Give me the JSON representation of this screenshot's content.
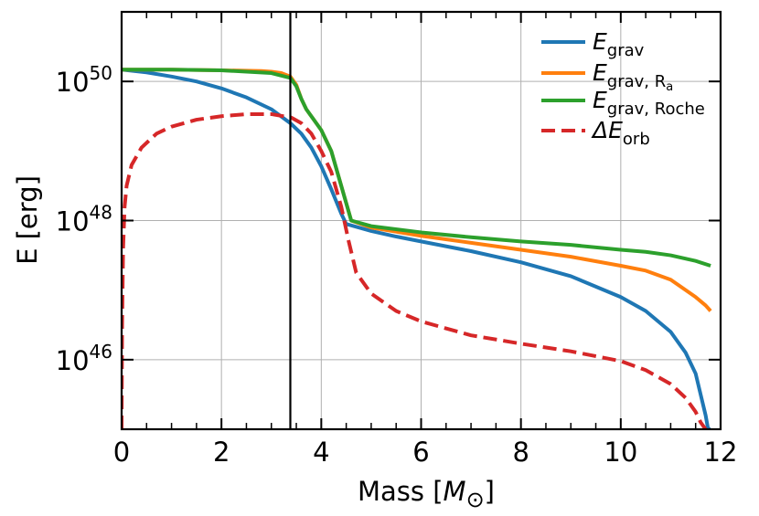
{
  "chart_data": {
    "type": "line",
    "title": "",
    "xlabel": "Mass [M⊙]",
    "ylabel": "E [erg]",
    "xlim": [
      0,
      12
    ],
    "ylim_log10": [
      45,
      51
    ],
    "y_scale": "log",
    "grid": true,
    "legend_position": "top-right",
    "x_ticks": [
      0,
      2,
      4,
      6,
      8,
      10,
      12
    ],
    "y_ticks": [
      {
        "value": 1e+46,
        "base": "10",
        "exp": "46"
      },
      {
        "value": 1e+48,
        "base": "10",
        "exp": "48"
      },
      {
        "value": 1e+50,
        "base": "10",
        "exp": "50"
      }
    ],
    "vertical_line_x": 3.38,
    "series": [
      {
        "name": "E_grav",
        "legend": {
          "main": "E",
          "sub": "grav"
        },
        "color": "#1f77b4",
        "dash": false,
        "x": [
          0,
          0.5,
          1.0,
          1.5,
          2.0,
          2.5,
          3.0,
          3.38,
          3.6,
          3.8,
          4.0,
          4.2,
          4.4,
          4.5,
          5.0,
          5.5,
          6.0,
          7.0,
          8.0,
          9.0,
          10.0,
          10.5,
          11.0,
          11.3,
          11.5,
          11.6,
          11.7,
          11.75,
          11.8
        ],
        "log10_y": [
          50.17,
          50.13,
          50.07,
          50.0,
          49.9,
          49.77,
          49.6,
          49.4,
          49.25,
          49.05,
          48.78,
          48.45,
          48.1,
          47.95,
          47.85,
          47.77,
          47.7,
          47.56,
          47.4,
          47.2,
          46.9,
          46.7,
          46.4,
          46.1,
          45.8,
          45.5,
          45.2,
          45.0,
          45.0
        ]
      },
      {
        "name": "E_grav,Ra",
        "legend": {
          "main": "E",
          "sub": "grav, R",
          "subsub": "a"
        },
        "color": "#ff7f0e",
        "dash": false,
        "x": [
          0,
          1.0,
          2.0,
          2.8,
          3.0,
          3.2,
          3.38,
          3.5,
          3.6,
          3.7,
          3.8,
          4.0,
          4.2,
          4.4,
          4.6,
          5.0,
          6.0,
          7.0,
          8.0,
          9.0,
          10.0,
          10.5,
          11.0,
          11.3,
          11.5,
          11.7,
          11.8
        ],
        "log10_y": [
          50.17,
          50.17,
          50.16,
          50.15,
          50.14,
          50.12,
          50.07,
          49.95,
          49.75,
          49.6,
          49.5,
          49.3,
          49.0,
          48.5,
          48.0,
          47.9,
          47.78,
          47.68,
          47.58,
          47.48,
          47.35,
          47.28,
          47.15,
          47.0,
          46.9,
          46.78,
          46.7
        ]
      },
      {
        "name": "E_grav,Roche",
        "legend": {
          "main": "E",
          "sub": "grav, Roche"
        },
        "color": "#2ca02c",
        "dash": false,
        "x": [
          0,
          1.0,
          2.0,
          3.0,
          3.38,
          3.5,
          3.6,
          3.7,
          3.8,
          4.0,
          4.2,
          4.4,
          4.6,
          5.0,
          6.0,
          7.0,
          8.0,
          9.0,
          10.0,
          10.5,
          11.0,
          11.5,
          11.8
        ],
        "log10_y": [
          50.17,
          50.17,
          50.16,
          50.12,
          50.05,
          49.93,
          49.75,
          49.6,
          49.5,
          49.3,
          49.0,
          48.5,
          48.0,
          47.92,
          47.83,
          47.76,
          47.7,
          47.65,
          47.58,
          47.55,
          47.5,
          47.42,
          47.35
        ]
      },
      {
        "name": "ΔE_orb",
        "legend": {
          "main": "ΔE",
          "sub": "orb"
        },
        "color": "#d62728",
        "dash": true,
        "x": [
          0,
          0.01,
          0.03,
          0.06,
          0.1,
          0.2,
          0.4,
          0.7,
          1.0,
          1.5,
          2.0,
          2.5,
          3.0,
          3.4,
          3.6,
          3.8,
          4.0,
          4.2,
          4.4,
          4.55,
          4.7,
          5.0,
          5.5,
          6.0,
          7.0,
          8.0,
          9.0,
          10.0,
          10.5,
          11.0,
          11.3,
          11.5,
          11.6,
          11.7
        ],
        "log10_y": [
          45.0,
          46.5,
          47.6,
          48.2,
          48.5,
          48.8,
          49.05,
          49.25,
          49.35,
          49.45,
          49.5,
          49.53,
          49.53,
          49.48,
          49.4,
          49.25,
          49.0,
          48.7,
          48.2,
          47.7,
          47.25,
          46.95,
          46.7,
          46.55,
          46.35,
          46.23,
          46.12,
          45.98,
          45.85,
          45.65,
          45.45,
          45.25,
          45.1,
          45.0
        ]
      }
    ]
  }
}
